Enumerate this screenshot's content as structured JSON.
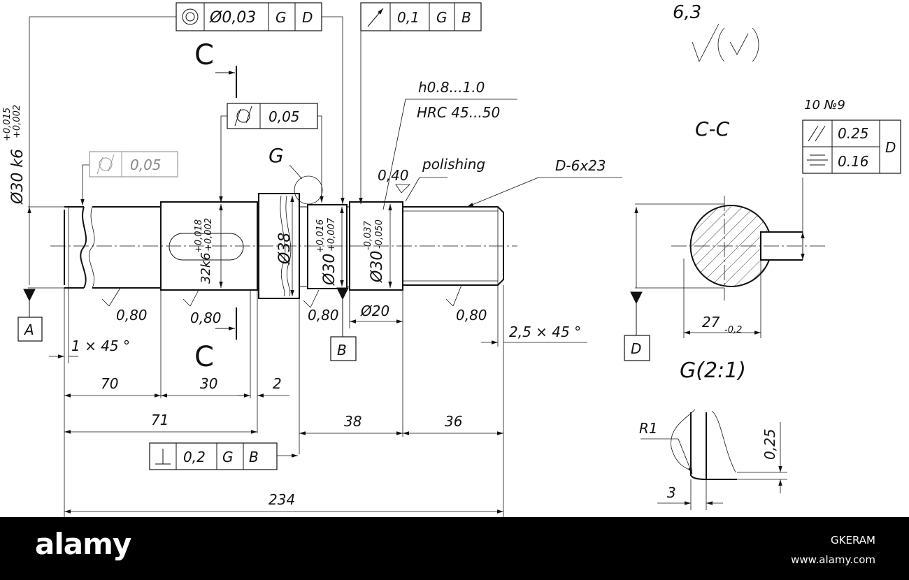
{
  "fcf": {
    "concentricity": {
      "tolerance": "Ø0,03",
      "datum1": "G",
      "datum2": "D"
    },
    "runout_top": {
      "tolerance": "0,1",
      "datum1": "G",
      "datum2": "B"
    },
    "cylindricity_mid": {
      "tolerance": "0,05"
    },
    "cylindricity_left": {
      "tolerance": "0,05"
    },
    "perpendicularity": {
      "tolerance": "0,2",
      "datum1": "G",
      "datum2": "B"
    },
    "keyway": {
      "parallel_tol": "0.25",
      "symmetry_tol": "0.16",
      "datum": "D"
    }
  },
  "roughness": {
    "general": "6,3",
    "polishing": "0,40",
    "s1": "0,80",
    "s2": "0,80",
    "s3": "0,80",
    "s4": "0,80"
  },
  "notes": {
    "hardness_depth": "h0.8...1.0",
    "hardness": "HRC 45...50",
    "polishing": "polishing",
    "spline": "D-6x23",
    "key_count": "10 №9"
  },
  "section": {
    "label": "C-C",
    "marker_top": "C",
    "marker_bottom": "C",
    "width": "27",
    "width_tol": "-0,2"
  },
  "detail": {
    "label": "G(2:1)",
    "marker": "G",
    "radius": "R1",
    "dim_3": "3",
    "dim_025": "0,25"
  },
  "datums": {
    "a": "A",
    "b": "B",
    "d": "D"
  },
  "diameters": {
    "d30k6": "Ø30 k6",
    "d30k6_upper": "+0,015",
    "d30k6_lower": "+0,002",
    "d32k6": "32k6",
    "d32k6_upper": "+0,018",
    "d32k6_lower": "+0,002",
    "d38": "Ø38",
    "d30b": "Ø30",
    "d30b_upper": "+0,016",
    "d30b_lower": "+0,007",
    "d30c": "Ø30",
    "d30c_upper": "-0,037",
    "d30c_lower": "-0,050",
    "d20": "Ø20"
  },
  "chamfers": {
    "left": "1 × 45 °",
    "right": "2,5 × 45 °"
  },
  "lengths": {
    "l70": "70",
    "l30": "30",
    "l2": "2",
    "l71": "71",
    "l38": "38",
    "l36": "36",
    "l234": "234"
  },
  "footer": {
    "brand": "alamy",
    "image_id": "GKERAM",
    "site": "www.alamy.com"
  }
}
